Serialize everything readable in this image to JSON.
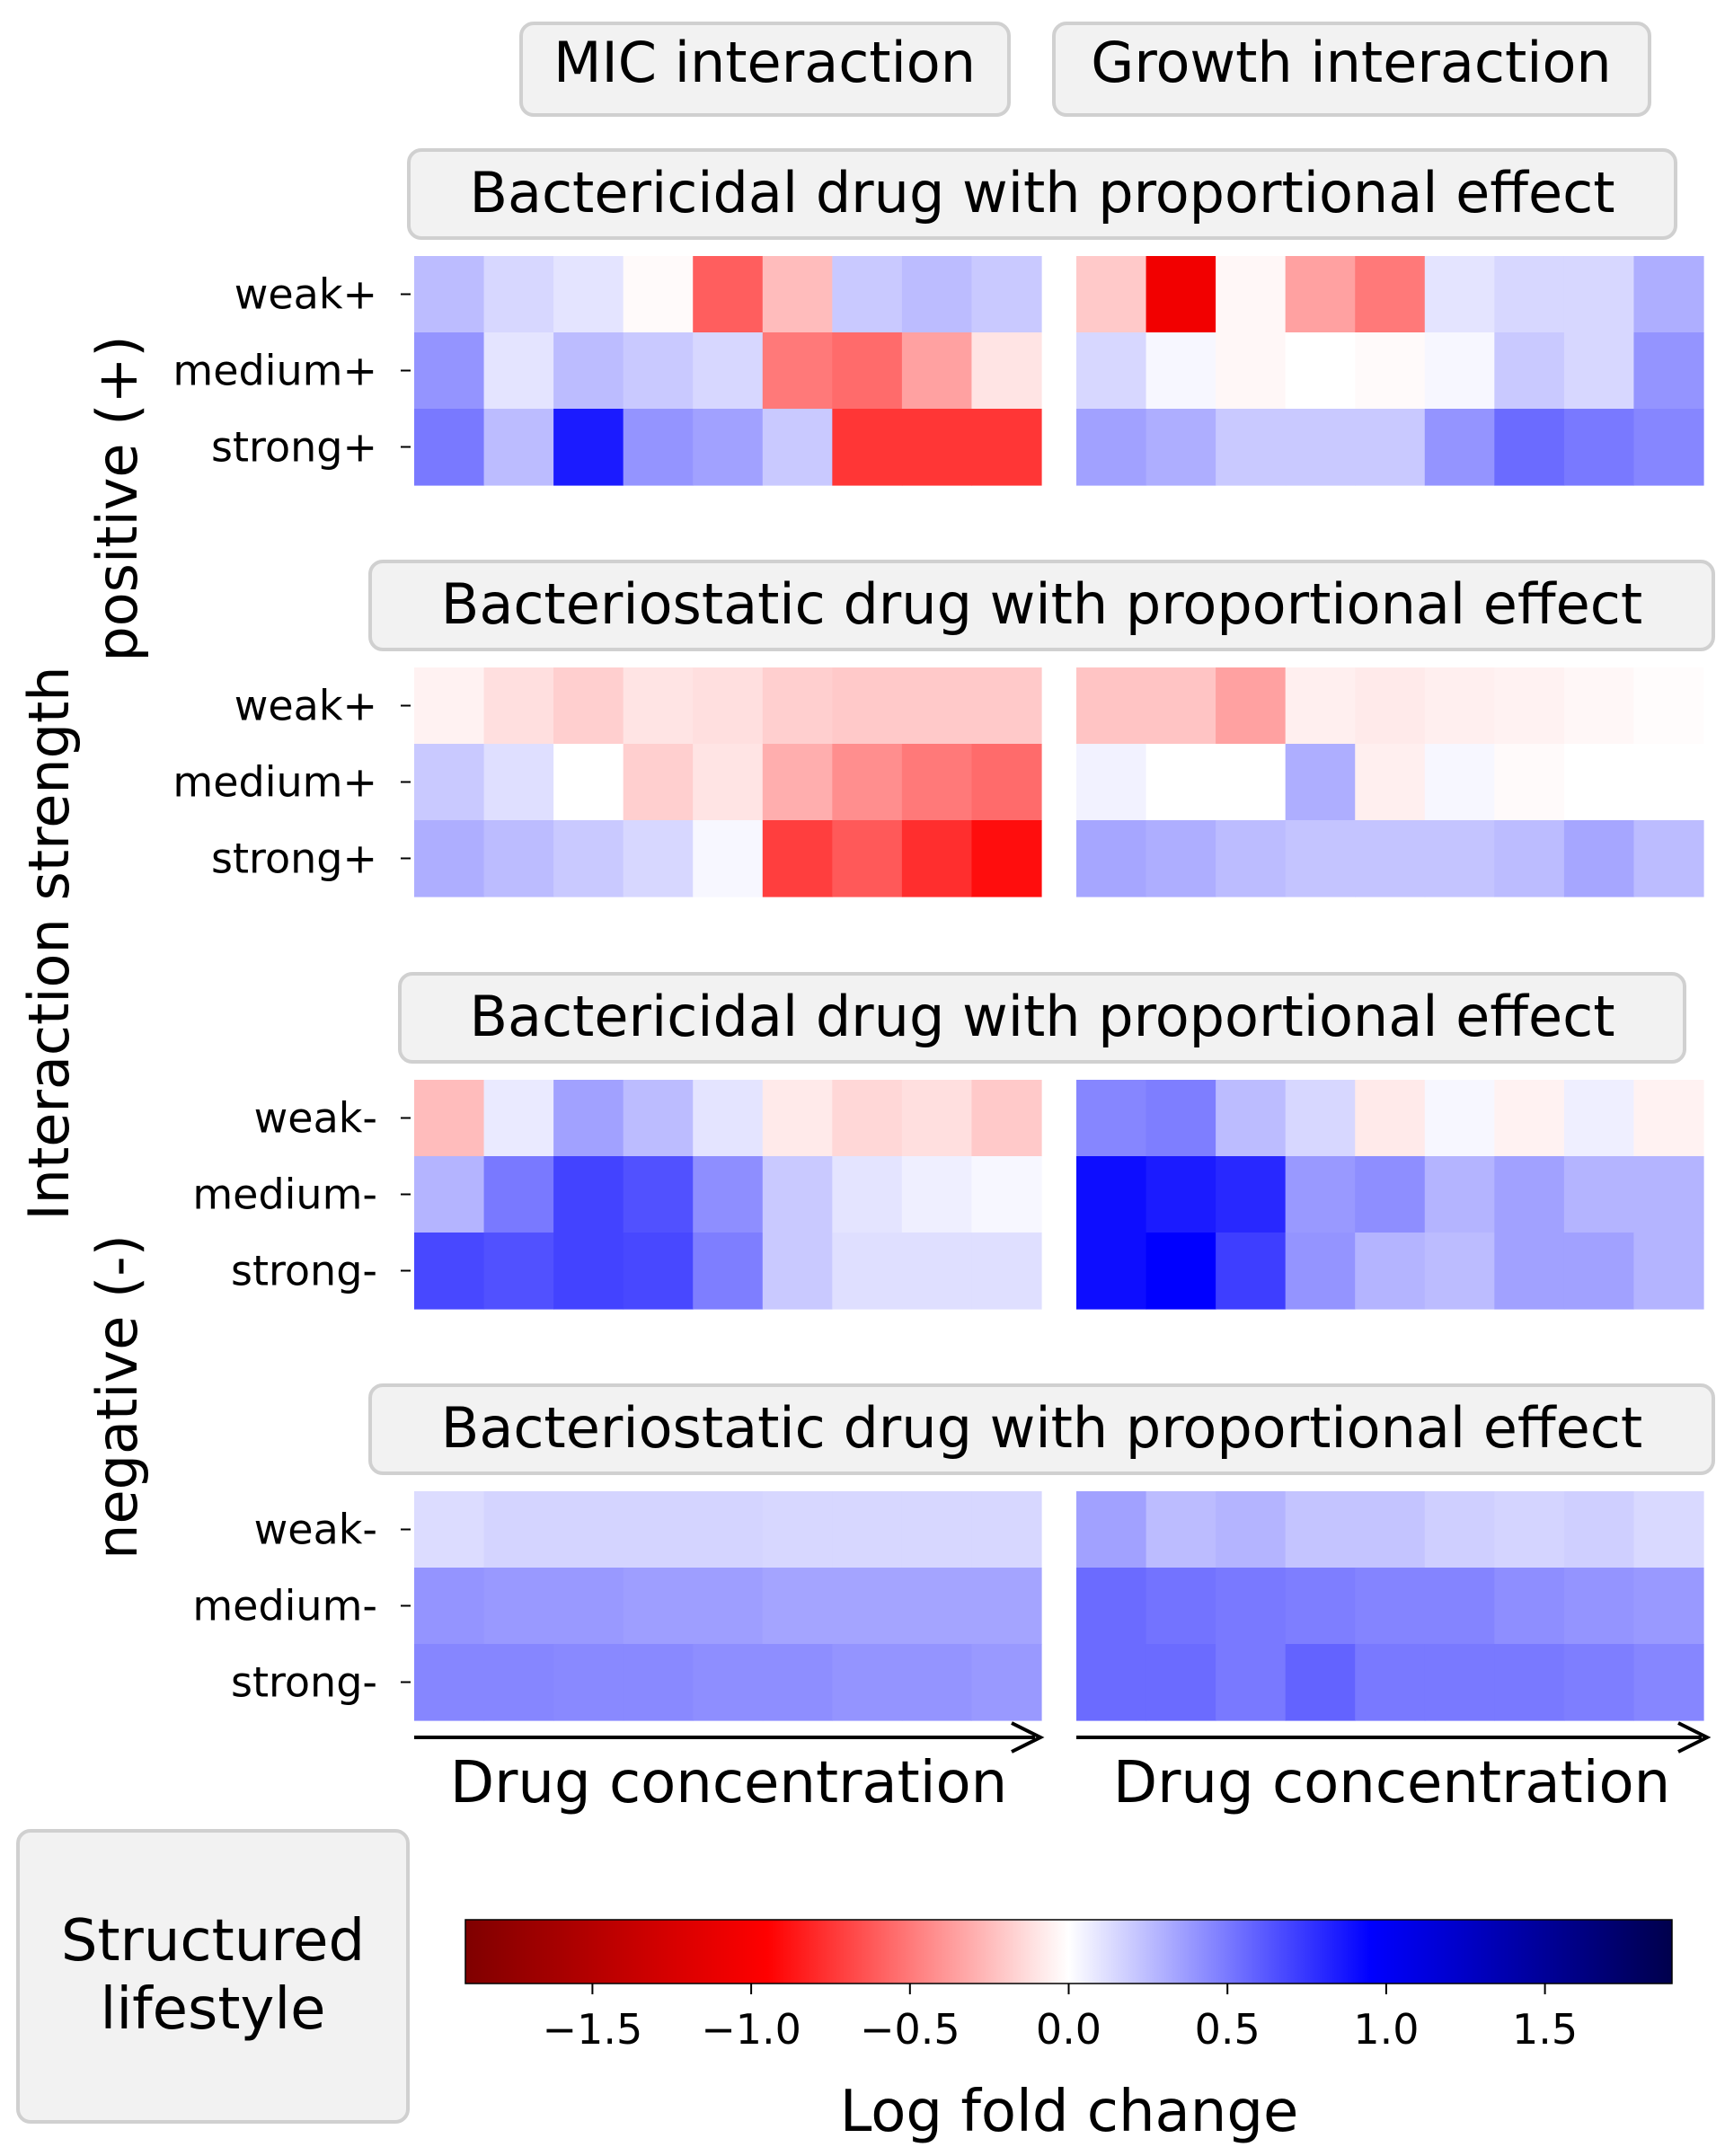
{
  "chart_data": {
    "type": "heatmap",
    "column_headers": [
      "MIC interaction",
      "Growth interaction"
    ],
    "y_axis_label": "Interaction strength",
    "y_group_labels": {
      "positive": "positive (+)",
      "negative": "negative (-)"
    },
    "x_axis_label": "Drug concentration",
    "side_box_label": [
      "Structured",
      "lifestyle"
    ],
    "colorbar": {
      "label": "Log fold change",
      "range": [
        -1.9,
        1.9
      ],
      "ticks": [
        -1.5,
        -1.0,
        -0.5,
        0.0,
        0.5,
        1.0,
        1.5
      ],
      "tick_labels": [
        "−1.5",
        "−1.0",
        "−0.5",
        "0.0",
        "0.5",
        "1.0",
        "1.5"
      ],
      "colormap": "seismic_r"
    },
    "panels": [
      {
        "title": "Bactericidal drug with proportional effect",
        "rows": [
          "weak+",
          "medium+",
          "strong+"
        ],
        "mic": [
          [
            0.25,
            0.15,
            0.1,
            -0.02,
            -0.6,
            -0.25,
            0.2,
            0.25,
            0.2
          ],
          [
            0.4,
            0.1,
            0.25,
            0.2,
            0.15,
            -0.5,
            -0.55,
            -0.35,
            -0.1
          ],
          [
            0.5,
            0.25,
            0.85,
            0.4,
            0.35,
            0.2,
            -0.75,
            -0.75,
            -0.75
          ]
        ],
        "growth": [
          [
            -0.2,
            -1.05,
            -0.03,
            -0.35,
            -0.5,
            0.1,
            0.15,
            0.15,
            0.3
          ],
          [
            0.15,
            0.03,
            -0.03,
            0.0,
            -0.02,
            0.03,
            0.2,
            0.15,
            0.4
          ],
          [
            0.35,
            0.3,
            0.2,
            0.2,
            0.2,
            0.4,
            0.55,
            0.5,
            0.45
          ]
        ]
      },
      {
        "title": "Bacteriostatic drug  with proportional effect",
        "rows": [
          "weak+",
          "medium+",
          "strong+"
        ],
        "mic": [
          [
            -0.05,
            -0.12,
            -0.18,
            -0.1,
            -0.12,
            -0.18,
            -0.2,
            -0.2,
            -0.2
          ],
          [
            0.2,
            0.12,
            0.0,
            -0.18,
            -0.1,
            -0.3,
            -0.42,
            -0.5,
            -0.55
          ],
          [
            0.3,
            0.25,
            0.2,
            0.15,
            0.03,
            -0.72,
            -0.62,
            -0.78,
            -0.9
          ]
        ],
        "growth": [
          [
            -0.22,
            -0.22,
            -0.35,
            -0.06,
            -0.08,
            -0.06,
            -0.05,
            -0.03,
            -0.01
          ],
          [
            0.05,
            0.0,
            0.0,
            0.3,
            -0.06,
            0.03,
            -0.02,
            0.0,
            0.0
          ],
          [
            0.33,
            0.3,
            0.25,
            0.22,
            0.22,
            0.22,
            0.25,
            0.33,
            0.25
          ]
        ]
      },
      {
        "title": "Bactericidal drug  with proportional effect",
        "rows": [
          "weak-",
          "medium-",
          "strong-"
        ],
        "mic": [
          [
            -0.25,
            0.08,
            0.35,
            0.25,
            0.1,
            -0.08,
            -0.15,
            -0.12,
            -0.2
          ],
          [
            0.28,
            0.5,
            0.7,
            0.65,
            0.42,
            0.2,
            0.1,
            0.06,
            0.03
          ],
          [
            0.68,
            0.65,
            0.7,
            0.68,
            0.48,
            0.2,
            0.12,
            0.12,
            0.12
          ]
        ],
        "growth": [
          [
            0.45,
            0.48,
            0.25,
            0.15,
            -0.08,
            0.03,
            -0.05,
            0.06,
            -0.05
          ],
          [
            0.9,
            0.85,
            0.8,
            0.38,
            0.42,
            0.28,
            0.35,
            0.28,
            0.28
          ],
          [
            0.9,
            0.95,
            0.72,
            0.4,
            0.28,
            0.25,
            0.35,
            0.35,
            0.28
          ]
        ]
      },
      {
        "title": "Bacteriostatic drug  with proportional effect",
        "rows": [
          "weak-",
          "medium-",
          "strong-"
        ],
        "mic": [
          [
            0.13,
            0.16,
            0.16,
            0.16,
            0.16,
            0.15,
            0.15,
            0.15,
            0.15
          ],
          [
            0.4,
            0.38,
            0.38,
            0.36,
            0.36,
            0.34,
            0.34,
            0.34,
            0.34
          ],
          [
            0.45,
            0.45,
            0.44,
            0.44,
            0.42,
            0.42,
            0.4,
            0.4,
            0.38
          ]
        ],
        "growth": [
          [
            0.35,
            0.25,
            0.28,
            0.22,
            0.22,
            0.18,
            0.16,
            0.18,
            0.14
          ],
          [
            0.55,
            0.52,
            0.5,
            0.48,
            0.46,
            0.46,
            0.42,
            0.4,
            0.38
          ],
          [
            0.55,
            0.55,
            0.5,
            0.58,
            0.5,
            0.5,
            0.5,
            0.48,
            0.45
          ]
        ]
      }
    ]
  }
}
